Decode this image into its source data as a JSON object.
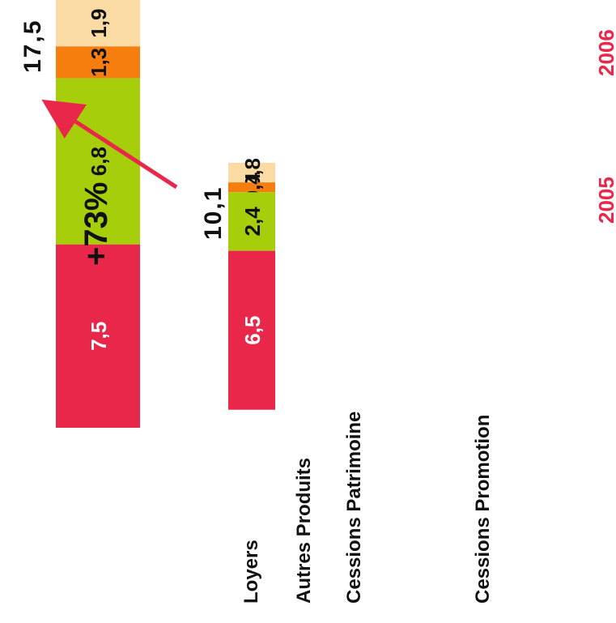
{
  "chart_data": {
    "type": "bar",
    "stacked": true,
    "orientation": "horizontal",
    "rotation": "rotated 90 degrees counter-clockwise",
    "categories": [
      "2005",
      "2006"
    ],
    "series": [
      {
        "name": "Loyers",
        "values": [
          0.8,
          1.9
        ],
        "color": "#fbdba4",
        "label_color": "#111111"
      },
      {
        "name": "Autres Produits",
        "values": [
          0.4,
          1.3
        ],
        "color": "#f57e0f",
        "label_color": "#111111"
      },
      {
        "name": "Cessions Patrimoine",
        "values": [
          2.4,
          6.8
        ],
        "color": "#a7ce0a",
        "label_color": "#111111"
      },
      {
        "name": "Cessions Promotion",
        "values": [
          6.5,
          7.5
        ],
        "color": "#e9274a",
        "label_color": "#ffffff"
      }
    ],
    "value_labels": [
      [
        "0,8",
        "0,4",
        "2,4",
        "6,5"
      ],
      [
        "1,9",
        "1,3",
        "6,8",
        "7,5"
      ]
    ],
    "totals": [
      10.1,
      17.5
    ],
    "total_labels": [
      "10,1",
      "17,5"
    ],
    "annotation": "+73%",
    "category_label_color": "#e9274a",
    "arrow_color": "#e9274a"
  }
}
